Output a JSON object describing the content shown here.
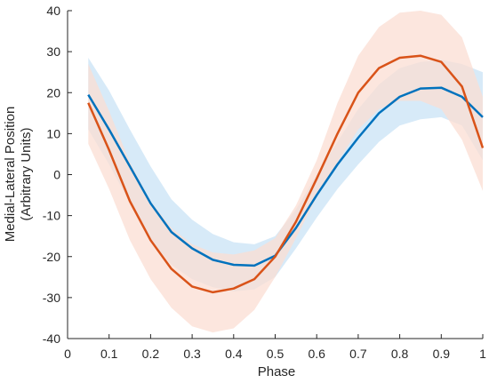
{
  "chart_data": {
    "type": "line",
    "title": "",
    "xlabel": "Phase",
    "ylabel_lines": [
      "Medial-Lateral Position",
      "(Arbitrary Units)"
    ],
    "xlim": [
      0,
      1
    ],
    "ylim": [
      -40,
      40
    ],
    "xticks": [
      0,
      0.1,
      0.2,
      0.3,
      0.4,
      0.5,
      0.6,
      0.7,
      0.8,
      0.9,
      1
    ],
    "xtick_labels": [
      "0",
      "0.1",
      "0.2",
      "0.3",
      "0.4",
      "0.5",
      "0.6",
      "0.7",
      "0.8",
      "0.9",
      "1"
    ],
    "yticks": [
      -40,
      -30,
      -20,
      -10,
      0,
      10,
      20,
      30,
      40
    ],
    "ytick_labels": [
      "-40",
      "-30",
      "-20",
      "-10",
      "0",
      "10",
      "20",
      "30",
      "40"
    ],
    "grid": false,
    "x": [
      0.05,
      0.1,
      0.15,
      0.2,
      0.25,
      0.3,
      0.35,
      0.4,
      0.45,
      0.5,
      0.55,
      0.6,
      0.65,
      0.7,
      0.75,
      0.8,
      0.85,
      0.9,
      0.95,
      1.0
    ],
    "series": [
      {
        "color": "#0072BD",
        "band_color": "#C9E3F5",
        "mean": [
          19.5,
          11.0,
          2.0,
          -7.0,
          -14.0,
          -18.0,
          -20.8,
          -22.0,
          -22.2,
          -19.8,
          -13.0,
          -5.0,
          2.5,
          9.0,
          15.0,
          19.0,
          21.0,
          21.2,
          19.0,
          14.0
        ],
        "upper": [
          28.5,
          20.5,
          11.0,
          2.0,
          -6.0,
          -11.0,
          -14.5,
          -16.5,
          -17.0,
          -15.0,
          -8.5,
          0.0,
          8.0,
          16.0,
          22.0,
          26.0,
          27.5,
          28.0,
          27.0,
          25.0
        ],
        "lower": [
          11.0,
          2.5,
          -7.0,
          -16.0,
          -22.0,
          -25.5,
          -27.5,
          -28.5,
          -28.0,
          -25.0,
          -18.0,
          -10.5,
          -3.5,
          2.5,
          8.0,
          12.0,
          13.5,
          14.0,
          12.0,
          3.5
        ]
      },
      {
        "color": "#D95319",
        "band_color": "#FBDDD3",
        "mean": [
          17.5,
          6.0,
          -6.5,
          -16.0,
          -23.0,
          -27.3,
          -28.7,
          -27.8,
          -25.5,
          -20.0,
          -11.5,
          -1.0,
          10.0,
          20.0,
          26.0,
          28.5,
          29.0,
          27.5,
          21.5,
          6.5
        ],
        "upper": [
          27.0,
          15.5,
          3.0,
          -6.5,
          -13.0,
          -17.0,
          -19.0,
          -19.5,
          -18.5,
          -15.5,
          -7.5,
          3.5,
          17.5,
          29.0,
          36.0,
          39.5,
          40.0,
          39.0,
          33.5,
          19.0
        ],
        "lower": [
          7.5,
          -3.5,
          -16.0,
          -25.5,
          -32.5,
          -37.0,
          -38.5,
          -37.5,
          -33.0,
          -25.0,
          -15.5,
          -5.5,
          3.0,
          11.0,
          16.0,
          18.0,
          18.0,
          16.0,
          8.5,
          -4.0
        ]
      }
    ]
  }
}
